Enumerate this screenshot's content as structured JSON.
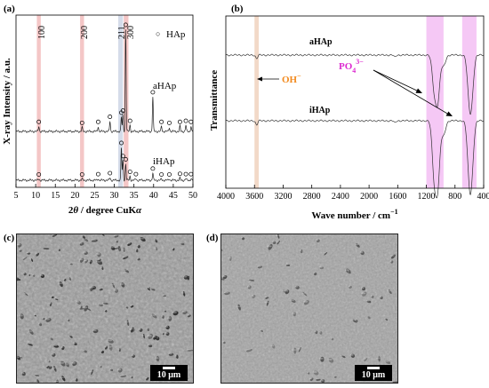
{
  "panel_a": {
    "label": "(a)",
    "ylabel": "X-ray Intensity / a.u.",
    "xlabel_prefix": "2",
    "xlabel_theta": "θ",
    "xlabel_suffix": " / degree CuK",
    "xlabel_alpha": "α",
    "xticks": [
      "5",
      "10",
      "15",
      "20",
      "25",
      "30",
      "35",
      "40",
      "45",
      "50"
    ],
    "peak_labels": [
      "100",
      "200",
      "211",
      "300"
    ],
    "legend_marker": "○",
    "legend": "HAp",
    "series_labels": [
      "aHAp",
      "iHAp"
    ]
  },
  "panel_b": {
    "label": "(b)",
    "ylabel": "Transmittance",
    "xlabel": "Wave number / cm",
    "xlabel_sup": "−1",
    "xticks": [
      "4000",
      "3600",
      "3200",
      "2800",
      "2400",
      "2000",
      "1600",
      "1200",
      "800",
      "400"
    ],
    "series_labels": [
      "aHAp",
      "iHAp"
    ],
    "oh_label": "OH",
    "oh_sup": "−",
    "po4_label": "PO",
    "po4_sub": "4",
    "po4_sup": "3−"
  },
  "panel_c": {
    "label": "(c)",
    "scale": "10 μm"
  },
  "panel_d": {
    "label": "(d)",
    "scale": "10 μm"
  },
  "colors": {
    "pink_band": "#f4c6c6",
    "blue_band": "#d5dcea",
    "magenta_band": "#f5c8f5",
    "oh_band": "#f2d9c8",
    "oh_text": "#f28a1e",
    "po4_text": "#dd2bd0"
  },
  "chart_data": [
    {
      "type": "line",
      "title": "",
      "xlabel": "2θ / degree CuKα",
      "ylabel": "X-ray Intensity / a.u.",
      "xlim": [
        5,
        50
      ],
      "x_ticks": [
        5,
        10,
        15,
        20,
        25,
        30,
        35,
        40,
        45,
        50
      ],
      "highlight_regions": [
        [
          10.3,
          11.3
        ],
        [
          21.3,
          22.3
        ],
        [
          31.0,
          32.2
        ],
        [
          32.4,
          33.6
        ]
      ],
      "series": [
        {
          "name": "aHAp",
          "peaks_x": [
            10.8,
            21.8,
            25.9,
            28.9,
            31.8,
            32.2,
            32.9,
            34.0,
            39.8,
            42.0,
            44.0,
            46.7,
            48.2,
            49.5
          ],
          "peaks_rel": [
            0.05,
            0.04,
            0.05,
            0.1,
            0.14,
            0.16,
            1.0,
            0.06,
            0.34,
            0.05,
            0.04,
            0.05,
            0.06,
            0.05
          ]
        },
        {
          "name": "iHAp",
          "peaks_x": [
            10.8,
            21.8,
            25.9,
            28.9,
            31.8,
            32.2,
            32.9,
            34.0,
            35.5,
            39.8,
            42.0,
            44.0,
            46.7,
            48.2,
            49.5
          ],
          "peaks_rel": [
            0.04,
            0.04,
            0.05,
            0.08,
            1.0,
            0.6,
            0.5,
            0.12,
            0.05,
            0.22,
            0.04,
            0.04,
            0.06,
            0.05,
            0.05
          ]
        }
      ]
    },
    {
      "type": "line",
      "title": "",
      "xlabel": "Wave number / cm−1",
      "ylabel": "Transmittance",
      "xlim": [
        4000,
        400
      ],
      "x_ticks": [
        4000,
        3600,
        3200,
        2800,
        2400,
        2000,
        1600,
        1200,
        800,
        400
      ],
      "highlight_regions": [
        [
          3600,
          3540
        ],
        [
          1200,
          960
        ],
        [
          700,
          500
        ]
      ],
      "annotations": [
        "OH−",
        "PO43−"
      ],
      "series": [
        {
          "name": "aHAp",
          "dips_x": [
            3570,
            1640,
            1090,
            1040,
            960,
            600,
            565
          ],
          "dips_rel": [
            0.05,
            0.03,
            0.45,
            0.6,
            0.15,
            0.55,
            0.45
          ]
        },
        {
          "name": "iHAp",
          "dips_x": [
            3570,
            1640,
            1090,
            1040,
            960,
            600,
            565
          ],
          "dips_rel": [
            0.06,
            0.03,
            0.75,
            0.85,
            0.2,
            0.7,
            0.55
          ]
        }
      ]
    }
  ]
}
